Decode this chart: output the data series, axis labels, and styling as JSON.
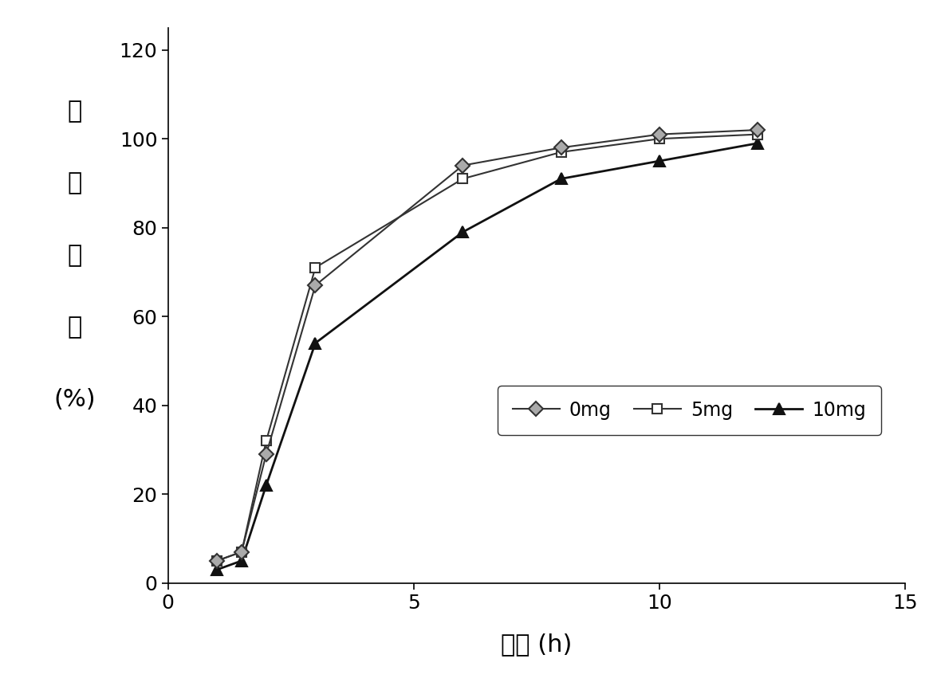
{
  "series": [
    {
      "label": "0mg",
      "x": [
        1,
        1.5,
        2,
        3,
        6,
        8,
        10,
        12
      ],
      "y": [
        5,
        7,
        29,
        67,
        94,
        98,
        101,
        102
      ],
      "color": "#333333",
      "marker": "D",
      "markersize": 9,
      "linewidth": 1.5,
      "markerfacecolor": "#aaaaaa",
      "markeredgecolor": "#333333",
      "zorder": 3
    },
    {
      "label": "5mg",
      "x": [
        1,
        1.5,
        2,
        3,
        6,
        8,
        10,
        12
      ],
      "y": [
        5,
        7,
        32,
        71,
        91,
        97,
        100,
        101
      ],
      "color": "#333333",
      "marker": "s",
      "markersize": 9,
      "linewidth": 1.5,
      "markerfacecolor": "#ffffff",
      "markeredgecolor": "#333333",
      "zorder": 2
    },
    {
      "label": "10mg",
      "x": [
        1,
        1.5,
        2,
        3,
        6,
        8,
        10,
        12
      ],
      "y": [
        3,
        5,
        22,
        54,
        79,
        91,
        95,
        99
      ],
      "color": "#111111",
      "marker": "^",
      "markersize": 10,
      "linewidth": 2.0,
      "markerfacecolor": "#111111",
      "markeredgecolor": "#111111",
      "zorder": 1
    }
  ],
  "xlabel": "时间 (h)",
  "ylabel_chars": [
    "累",
    "积",
    "释",
    "放",
    "(%)"
  ],
  "xlim": [
    0,
    15
  ],
  "ylim": [
    0,
    125
  ],
  "xticks": [
    0,
    5,
    10,
    15
  ],
  "yticks": [
    0,
    20,
    40,
    60,
    80,
    100,
    120
  ],
  "background_color": "#ffffff",
  "xlabel_fontsize": 22,
  "ylabel_fontsize": 22,
  "tick_fontsize": 18,
  "legend_fontsize": 17
}
